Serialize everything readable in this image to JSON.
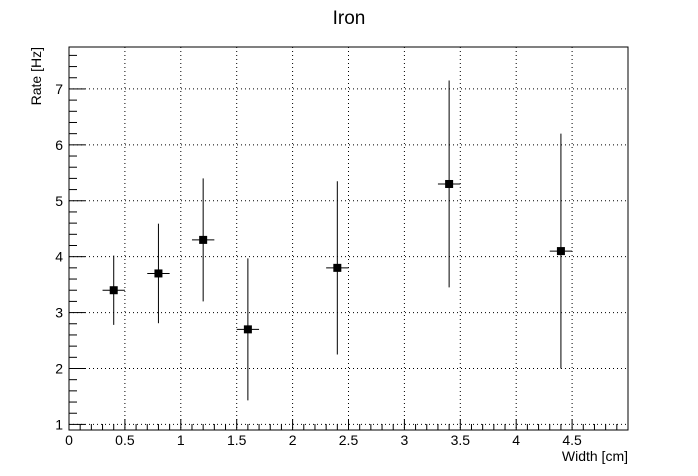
{
  "chart_data": {
    "type": "scatter",
    "title": "Iron",
    "xlabel": "Width [cm]",
    "ylabel": "Rate [Hz]",
    "xlim": [
      0,
      5
    ],
    "ylim": [
      0.9,
      7.75
    ],
    "grid": true,
    "x_ticks": [
      "0",
      "0.5",
      "1",
      "1.5",
      "2",
      "2.5",
      "3",
      "3.5",
      "4",
      "4.5"
    ],
    "y_ticks": [
      "1",
      "2",
      "3",
      "4",
      "5",
      "6",
      "7"
    ],
    "marker": "square",
    "series": [
      {
        "points": [
          {
            "x": 0.4,
            "y": 3.4,
            "xerr": 0.1,
            "ylo": 2.78,
            "yhi": 4.02
          },
          {
            "x": 0.8,
            "y": 3.7,
            "xerr": 0.1,
            "ylo": 2.81,
            "yhi": 4.59
          },
          {
            "x": 1.2,
            "y": 4.3,
            "xerr": 0.1,
            "ylo": 3.2,
            "yhi": 5.4
          },
          {
            "x": 1.6,
            "y": 2.7,
            "xerr": 0.1,
            "ylo": 1.43,
            "yhi": 3.97
          },
          {
            "x": 2.4,
            "y": 3.8,
            "xerr": 0.1,
            "ylo": 2.25,
            "yhi": 5.35
          },
          {
            "x": 3.4,
            "y": 5.3,
            "xerr": 0.1,
            "ylo": 3.45,
            "yhi": 7.15
          },
          {
            "x": 4.4,
            "y": 4.1,
            "xerr": 0.1,
            "ylo": 2.0,
            "yhi": 6.2
          }
        ]
      }
    ]
  }
}
